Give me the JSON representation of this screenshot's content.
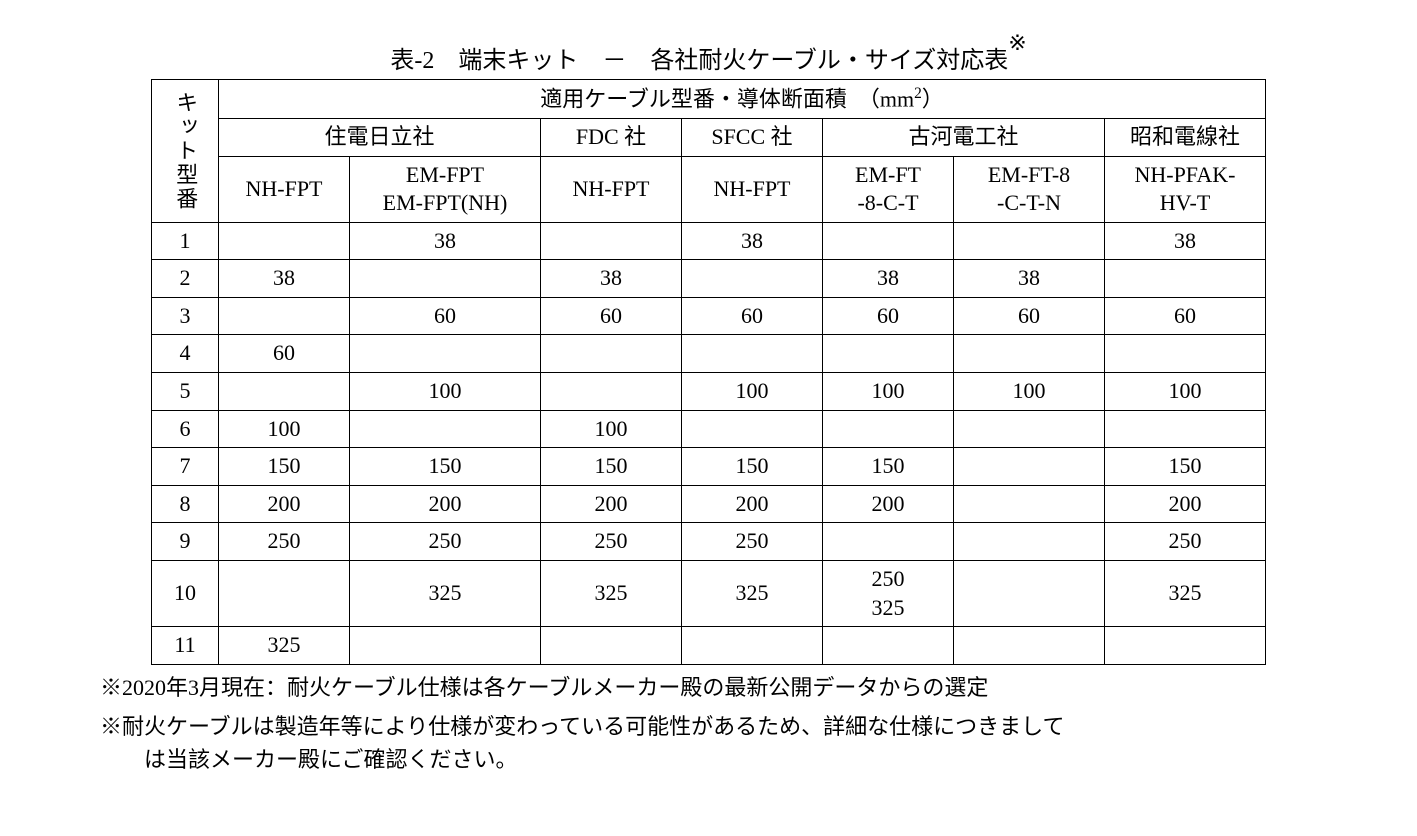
{
  "title_main": "表-2　端末キット　－　各社耐火ケーブル・サイズ対応表",
  "title_star": "※",
  "header_row1": "適用ケーブル型番・導体断面積　（mm",
  "header_row1_sup": "2",
  "header_row1_close": "）",
  "vhead": "キット型番",
  "maker1": "住電日立社",
  "maker2": "FDC 社",
  "maker3": "SFCC 社",
  "maker4": "古河電工社",
  "maker5": "昭和電線社",
  "col1": "NH-FPT",
  "col2a": "EM-FPT",
  "col2b": "EM-FPT(NH)",
  "col3": "NH-FPT",
  "col4": "NH-FPT",
  "col5a": "EM-FT",
  "col5b": "-8-C-T",
  "col6a": "EM-FT-8",
  "col6b": "-C-T-N",
  "col7a": "NH-PFAK-",
  "col7b": "HV-T",
  "rows": [
    {
      "k": "1",
      "c1": "",
      "c2": "38",
      "c3": "",
      "c4": "38",
      "c5": "",
      "c6": "",
      "c7": "38"
    },
    {
      "k": "2",
      "c1": "38",
      "c2": "",
      "c3": "38",
      "c4": "",
      "c5": "38",
      "c6": "38",
      "c7": ""
    },
    {
      "k": "3",
      "c1": "",
      "c2": "60",
      "c3": "60",
      "c4": "60",
      "c5": "60",
      "c6": "60",
      "c7": "60"
    },
    {
      "k": "4",
      "c1": "60",
      "c2": "",
      "c3": "",
      "c4": "",
      "c5": "",
      "c6": "",
      "c7": ""
    },
    {
      "k": "5",
      "c1": "",
      "c2": "100",
      "c3": "",
      "c4": "100",
      "c5": "100",
      "c6": "100",
      "c7": "100"
    },
    {
      "k": "6",
      "c1": "100",
      "c2": "",
      "c3": "100",
      "c4": "",
      "c5": "",
      "c6": "",
      "c7": ""
    },
    {
      "k": "7",
      "c1": "150",
      "c2": "150",
      "c3": "150",
      "c4": "150",
      "c5": "150",
      "c6": "",
      "c7": "150"
    },
    {
      "k": "8",
      "c1": "200",
      "c2": "200",
      "c3": "200",
      "c4": "200",
      "c5": "200",
      "c6": "",
      "c7": "200"
    },
    {
      "k": "9",
      "c1": "250",
      "c2": "250",
      "c3": "250",
      "c4": "250",
      "c5": "",
      "c6": "",
      "c7": "250"
    },
    {
      "k": "10",
      "c1": "",
      "c2": "325",
      "c3": "325",
      "c4": "325",
      "c5": "250\n325",
      "c6": "",
      "c7": "325"
    },
    {
      "k": "11",
      "c1": "325",
      "c2": "",
      "c3": "",
      "c4": "",
      "c5": "",
      "c6": "",
      "c7": ""
    }
  ],
  "note1": "※2020年3月現在：耐火ケーブル仕様は各ケーブルメーカー殿の最新公開データからの選定",
  "note2a": "※耐火ケーブルは製造年等により仕様が変わっている可能性があるため、詳細な仕様につきまして",
  "note2b": "は当該メーカー殿にご確認ください。"
}
